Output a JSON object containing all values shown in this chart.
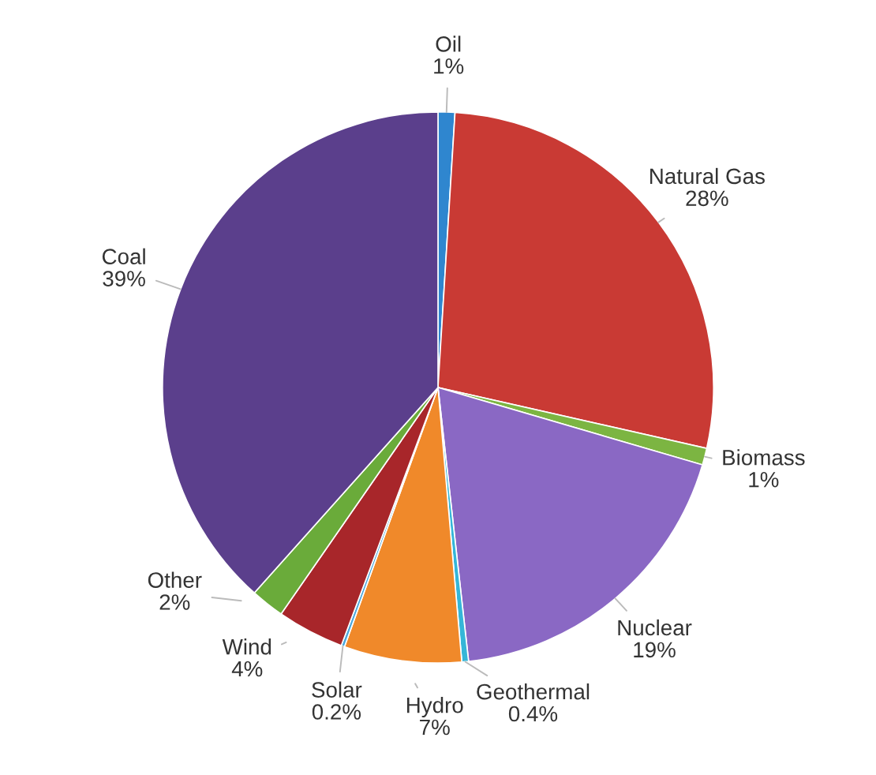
{
  "chart_data": {
    "type": "pie",
    "categories": [
      "Oil",
      "Natural Gas",
      "Biomass",
      "Nuclear",
      "Geothermal",
      "Hydro",
      "Solar",
      "Wind",
      "Other",
      "Coal"
    ],
    "values": [
      1,
      28,
      1,
      19,
      0.4,
      7,
      0.2,
      4,
      2,
      39
    ],
    "value_labels": [
      "1%",
      "28%",
      "1%",
      "19%",
      "0.4%",
      "7%",
      "0.2%",
      "4%",
      "2%",
      "39%"
    ],
    "colors": [
      "#2f86cf",
      "#c93a34",
      "#7cb542",
      "#8a68c4",
      "#35b6d8",
      "#f0892a",
      "#4aa6dc",
      "#a8262a",
      "#6aab3a",
      "#5b3f8c"
    ]
  }
}
